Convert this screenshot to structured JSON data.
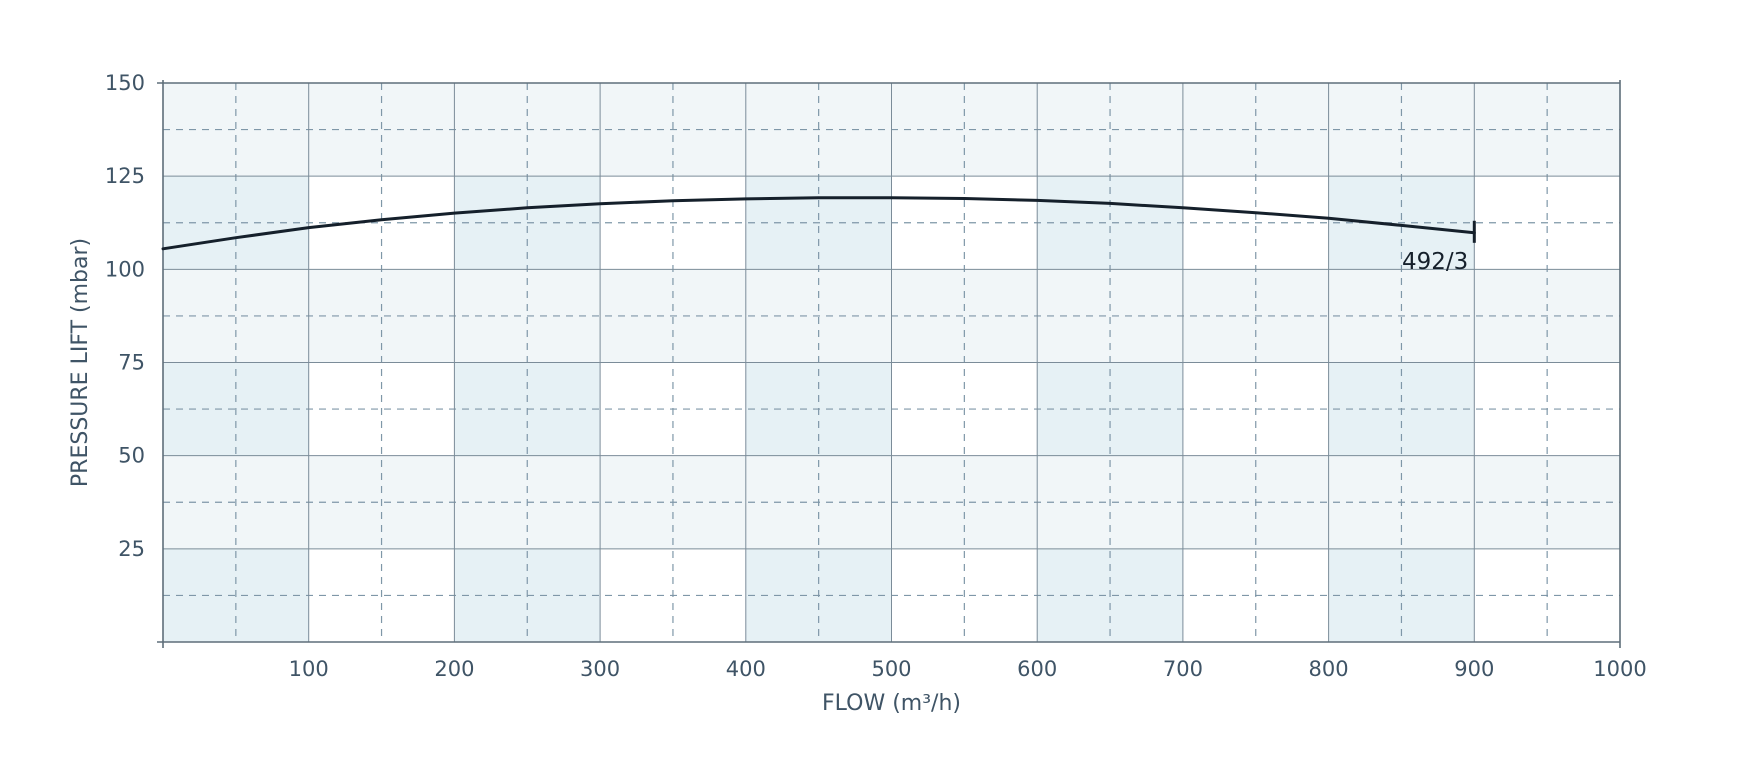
{
  "chart_data": {
    "type": "line",
    "title": "",
    "xlabel": "FLOW (m³/h)",
    "ylabel": "PRESSURE LIFT (mbar)",
    "xlim": [
      0,
      1000
    ],
    "ylim": [
      0,
      150
    ],
    "x_ticks": [
      100,
      200,
      300,
      400,
      500,
      600,
      700,
      800,
      900,
      1000
    ],
    "y_ticks": [
      25,
      50,
      75,
      100,
      125,
      150
    ],
    "x_minor_step": 50,
    "y_minor_step": 12.5,
    "grid": true,
    "legend": "none",
    "colors": {
      "curve": "#15202b",
      "axis_text": "#3f5466",
      "grid_major": "#7b8c99",
      "grid_minor": "#7f97a8",
      "band_light": "#f1f6f8",
      "band_dark": "#e6f1f5"
    },
    "series": [
      {
        "label": "492/3",
        "x": [
          0,
          50,
          100,
          150,
          200,
          250,
          300,
          350,
          400,
          450,
          500,
          550,
          600,
          650,
          700,
          750,
          800,
          850,
          900
        ],
        "y": [
          105.5,
          108.5,
          111.2,
          113.3,
          115.1,
          116.5,
          117.6,
          118.4,
          118.9,
          119.2,
          119.2,
          119.0,
          118.5,
          117.7,
          116.5,
          115.2,
          113.7,
          111.8,
          109.8
        ]
      }
    ]
  }
}
